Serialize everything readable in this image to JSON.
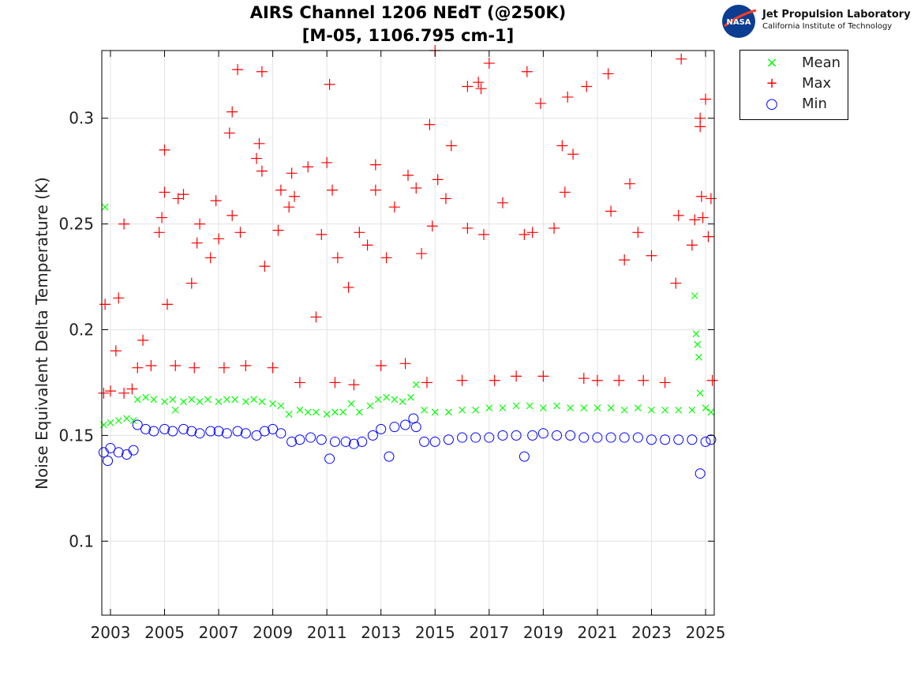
{
  "chart_data": {
    "type": "scatter",
    "title": "AIRS Channel 1206 NEdT (@250K)",
    "subtitle": "[M-05, 1106.795 cm-1]",
    "xlabel": "",
    "ylabel": "Noise Equivalent Delta Temperature (K)",
    "xlim": [
      2002.68,
      2025.32
    ],
    "ylim": [
      0.065,
      0.332
    ],
    "xticks": [
      "2003",
      "2005",
      "2007",
      "2009",
      "2011",
      "2013",
      "2015",
      "2017",
      "2019",
      "2021",
      "2023",
      "2025"
    ],
    "yticks": [
      "0.1",
      "0.15",
      "0.2",
      "0.25",
      "0.3"
    ],
    "grid": true,
    "legend_position": "outside-top-right",
    "series": [
      {
        "name": "Mean",
        "marker": "x",
        "color": "#00ff00",
        "points": [
          [
            2002.75,
            0.155
          ],
          [
            2002.8,
            0.258
          ],
          [
            2003.0,
            0.156
          ],
          [
            2003.3,
            0.157
          ],
          [
            2003.6,
            0.158
          ],
          [
            2003.85,
            0.157
          ],
          [
            2004.0,
            0.167
          ],
          [
            2004.3,
            0.168
          ],
          [
            2004.6,
            0.167
          ],
          [
            2005.0,
            0.166
          ],
          [
            2005.3,
            0.167
          ],
          [
            2005.4,
            0.162
          ],
          [
            2005.7,
            0.166
          ],
          [
            2006.0,
            0.167
          ],
          [
            2006.3,
            0.166
          ],
          [
            2006.6,
            0.167
          ],
          [
            2007.0,
            0.166
          ],
          [
            2007.3,
            0.167
          ],
          [
            2007.6,
            0.167
          ],
          [
            2008.0,
            0.166
          ],
          [
            2008.3,
            0.167
          ],
          [
            2008.6,
            0.166
          ],
          [
            2009.0,
            0.165
          ],
          [
            2009.3,
            0.164
          ],
          [
            2009.6,
            0.16
          ],
          [
            2010.0,
            0.162
          ],
          [
            2010.3,
            0.161
          ],
          [
            2010.6,
            0.161
          ],
          [
            2011.0,
            0.16
          ],
          [
            2011.3,
            0.161
          ],
          [
            2011.6,
            0.161
          ],
          [
            2011.9,
            0.165
          ],
          [
            2012.2,
            0.161
          ],
          [
            2012.6,
            0.164
          ],
          [
            2012.9,
            0.167
          ],
          [
            2013.2,
            0.168
          ],
          [
            2013.5,
            0.167
          ],
          [
            2013.8,
            0.166
          ],
          [
            2014.1,
            0.168
          ],
          [
            2014.3,
            0.174
          ],
          [
            2014.6,
            0.162
          ],
          [
            2015.0,
            0.161
          ],
          [
            2015.5,
            0.161
          ],
          [
            2016.0,
            0.162
          ],
          [
            2016.5,
            0.162
          ],
          [
            2017.0,
            0.163
          ],
          [
            2017.5,
            0.163
          ],
          [
            2018.0,
            0.164
          ],
          [
            2018.5,
            0.164
          ],
          [
            2019.0,
            0.163
          ],
          [
            2019.5,
            0.164
          ],
          [
            2020.0,
            0.163
          ],
          [
            2020.5,
            0.163
          ],
          [
            2021.0,
            0.163
          ],
          [
            2021.5,
            0.163
          ],
          [
            2022.0,
            0.162
          ],
          [
            2022.5,
            0.163
          ],
          [
            2023.0,
            0.162
          ],
          [
            2023.5,
            0.162
          ],
          [
            2024.0,
            0.162
          ],
          [
            2024.5,
            0.162
          ],
          [
            2024.6,
            0.216
          ],
          [
            2024.65,
            0.198
          ],
          [
            2024.7,
            0.193
          ],
          [
            2024.75,
            0.187
          ],
          [
            2024.8,
            0.17
          ],
          [
            2025.0,
            0.163
          ],
          [
            2025.2,
            0.161
          ]
        ]
      },
      {
        "name": "Max",
        "marker": "+",
        "color": "#ff0000",
        "points": [
          [
            2002.75,
            0.17
          ],
          [
            2002.8,
            0.212
          ],
          [
            2003.0,
            0.171
          ],
          [
            2003.2,
            0.19
          ],
          [
            2003.3,
            0.215
          ],
          [
            2003.5,
            0.17
          ],
          [
            2003.5,
            0.25
          ],
          [
            2003.8,
            0.172
          ],
          [
            2004.0,
            0.182
          ],
          [
            2004.2,
            0.195
          ],
          [
            2004.5,
            0.183
          ],
          [
            2004.8,
            0.246
          ],
          [
            2004.9,
            0.253
          ],
          [
            2005.0,
            0.265
          ],
          [
            2005.0,
            0.285
          ],
          [
            2005.1,
            0.212
          ],
          [
            2005.4,
            0.183
          ],
          [
            2005.5,
            0.262
          ],
          [
            2005.7,
            0.264
          ],
          [
            2006.0,
            0.222
          ],
          [
            2006.1,
            0.182
          ],
          [
            2006.2,
            0.241
          ],
          [
            2006.3,
            0.25
          ],
          [
            2006.7,
            0.234
          ],
          [
            2006.9,
            0.261
          ],
          [
            2007.0,
            0.243
          ],
          [
            2007.2,
            0.182
          ],
          [
            2007.4,
            0.293
          ],
          [
            2007.5,
            0.303
          ],
          [
            2007.5,
            0.254
          ],
          [
            2007.7,
            0.323
          ],
          [
            2007.8,
            0.246
          ],
          [
            2008.0,
            0.183
          ],
          [
            2008.4,
            0.281
          ],
          [
            2008.5,
            0.288
          ],
          [
            2008.6,
            0.322
          ],
          [
            2008.6,
            0.275
          ],
          [
            2008.7,
            0.23
          ],
          [
            2009.0,
            0.182
          ],
          [
            2009.2,
            0.247
          ],
          [
            2009.3,
            0.266
          ],
          [
            2009.6,
            0.258
          ],
          [
            2009.7,
            0.274
          ],
          [
            2009.8,
            0.263
          ],
          [
            2010.0,
            0.175
          ],
          [
            2010.3,
            0.277
          ],
          [
            2010.6,
            0.206
          ],
          [
            2010.8,
            0.245
          ],
          [
            2011.0,
            0.279
          ],
          [
            2011.1,
            0.316
          ],
          [
            2011.2,
            0.266
          ],
          [
            2011.3,
            0.175
          ],
          [
            2011.4,
            0.234
          ],
          [
            2011.8,
            0.22
          ],
          [
            2012.0,
            0.174
          ],
          [
            2012.2,
            0.246
          ],
          [
            2012.5,
            0.24
          ],
          [
            2012.8,
            0.266
          ],
          [
            2012.8,
            0.278
          ],
          [
            2013.0,
            0.183
          ],
          [
            2013.2,
            0.234
          ],
          [
            2013.5,
            0.258
          ],
          [
            2013.9,
            0.184
          ],
          [
            2014.0,
            0.273
          ],
          [
            2014.3,
            0.267
          ],
          [
            2014.5,
            0.236
          ],
          [
            2014.7,
            0.175
          ],
          [
            2014.8,
            0.297
          ],
          [
            2014.9,
            0.249
          ],
          [
            2015.0,
            0.332
          ],
          [
            2015.1,
            0.271
          ],
          [
            2015.4,
            0.262
          ],
          [
            2015.6,
            0.287
          ],
          [
            2016.0,
            0.176
          ],
          [
            2016.2,
            0.248
          ],
          [
            2016.2,
            0.315
          ],
          [
            2016.6,
            0.317
          ],
          [
            2016.7,
            0.314
          ],
          [
            2016.8,
            0.245
          ],
          [
            2017.0,
            0.326
          ],
          [
            2017.2,
            0.176
          ],
          [
            2017.5,
            0.26
          ],
          [
            2018.0,
            0.178
          ],
          [
            2018.3,
            0.245
          ],
          [
            2018.4,
            0.322
          ],
          [
            2018.6,
            0.246
          ],
          [
            2018.9,
            0.307
          ],
          [
            2019.0,
            0.178
          ],
          [
            2019.4,
            0.248
          ],
          [
            2019.7,
            0.287
          ],
          [
            2019.8,
            0.265
          ],
          [
            2019.9,
            0.31
          ],
          [
            2020.1,
            0.283
          ],
          [
            2020.5,
            0.177
          ],
          [
            2020.6,
            0.315
          ],
          [
            2021.0,
            0.176
          ],
          [
            2021.4,
            0.321
          ],
          [
            2021.5,
            0.256
          ],
          [
            2021.8,
            0.176
          ],
          [
            2022.0,
            0.233
          ],
          [
            2022.2,
            0.269
          ],
          [
            2022.5,
            0.246
          ],
          [
            2022.7,
            0.176
          ],
          [
            2023.0,
            0.235
          ],
          [
            2023.5,
            0.175
          ],
          [
            2023.9,
            0.222
          ],
          [
            2024.0,
            0.254
          ],
          [
            2024.1,
            0.328
          ],
          [
            2024.5,
            0.24
          ],
          [
            2024.6,
            0.252
          ],
          [
            2024.8,
            0.296
          ],
          [
            2024.8,
            0.3
          ],
          [
            2024.85,
            0.263
          ],
          [
            2024.9,
            0.253
          ],
          [
            2025.0,
            0.309
          ],
          [
            2025.1,
            0.244
          ],
          [
            2025.2,
            0.262
          ],
          [
            2025.25,
            0.176
          ]
        ]
      },
      {
        "name": "Min",
        "marker": "o",
        "color": "#0000ff",
        "points": [
          [
            2002.75,
            0.142
          ],
          [
            2002.9,
            0.138
          ],
          [
            2003.0,
            0.144
          ],
          [
            2003.3,
            0.142
          ],
          [
            2003.6,
            0.141
          ],
          [
            2003.85,
            0.143
          ],
          [
            2004.0,
            0.155
          ],
          [
            2004.3,
            0.153
          ],
          [
            2004.6,
            0.152
          ],
          [
            2005.0,
            0.153
          ],
          [
            2005.3,
            0.152
          ],
          [
            2005.7,
            0.153
          ],
          [
            2006.0,
            0.152
          ],
          [
            2006.3,
            0.151
          ],
          [
            2006.7,
            0.152
          ],
          [
            2007.0,
            0.152
          ],
          [
            2007.3,
            0.151
          ],
          [
            2007.7,
            0.152
          ],
          [
            2008.0,
            0.151
          ],
          [
            2008.4,
            0.15
          ],
          [
            2008.7,
            0.152
          ],
          [
            2009.0,
            0.153
          ],
          [
            2009.3,
            0.151
          ],
          [
            2009.7,
            0.147
          ],
          [
            2010.0,
            0.148
          ],
          [
            2010.4,
            0.149
          ],
          [
            2010.8,
            0.148
          ],
          [
            2011.1,
            0.139
          ],
          [
            2011.3,
            0.147
          ],
          [
            2011.7,
            0.147
          ],
          [
            2012.0,
            0.146
          ],
          [
            2012.3,
            0.147
          ],
          [
            2012.7,
            0.15
          ],
          [
            2013.0,
            0.153
          ],
          [
            2013.3,
            0.14
          ],
          [
            2013.5,
            0.154
          ],
          [
            2013.9,
            0.155
          ],
          [
            2014.2,
            0.158
          ],
          [
            2014.3,
            0.154
          ],
          [
            2014.6,
            0.147
          ],
          [
            2015.0,
            0.147
          ],
          [
            2015.5,
            0.148
          ],
          [
            2016.0,
            0.149
          ],
          [
            2016.5,
            0.149
          ],
          [
            2017.0,
            0.149
          ],
          [
            2017.5,
            0.15
          ],
          [
            2018.0,
            0.15
          ],
          [
            2018.3,
            0.14
          ],
          [
            2018.6,
            0.15
          ],
          [
            2019.0,
            0.151
          ],
          [
            2019.5,
            0.15
          ],
          [
            2020.0,
            0.15
          ],
          [
            2020.5,
            0.149
          ],
          [
            2021.0,
            0.149
          ],
          [
            2021.5,
            0.149
          ],
          [
            2022.0,
            0.149
          ],
          [
            2022.5,
            0.149
          ],
          [
            2023.0,
            0.148
          ],
          [
            2023.5,
            0.148
          ],
          [
            2024.0,
            0.148
          ],
          [
            2024.5,
            0.148
          ],
          [
            2024.8,
            0.132
          ],
          [
            2025.0,
            0.147
          ],
          [
            2025.2,
            0.148
          ]
        ]
      }
    ]
  },
  "logo": {
    "org": "Jet Propulsion Laboratory",
    "sub": "California Institute of Technology",
    "badge": "NASA"
  }
}
